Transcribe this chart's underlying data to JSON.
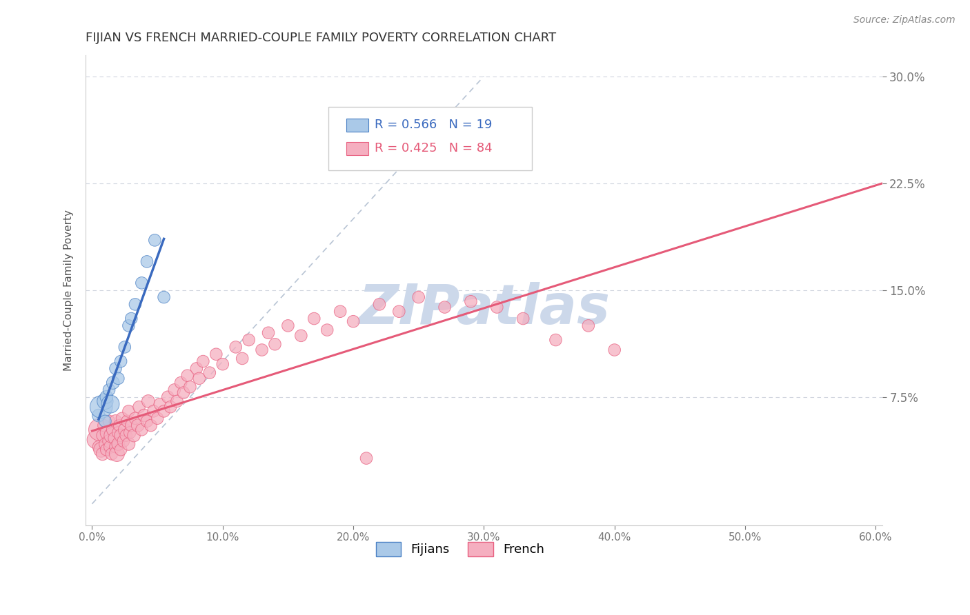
{
  "title": "FIJIAN VS FRENCH MARRIED-COUPLE FAMILY POVERTY CORRELATION CHART",
  "source_text": "Source: ZipAtlas.com",
  "ylabel": "Married-Couple Family Poverty",
  "xlim": [
    -0.005,
    0.605
  ],
  "ylim": [
    -0.015,
    0.315
  ],
  "xticks": [
    0.0,
    0.1,
    0.2,
    0.3,
    0.4,
    0.5,
    0.6
  ],
  "xticklabels": [
    "0.0%",
    "10.0%",
    "20.0%",
    "30.0%",
    "40.0%",
    "50.0%",
    "60.0%"
  ],
  "yticks": [
    0.075,
    0.15,
    0.225,
    0.3
  ],
  "yticklabels": [
    "7.5%",
    "15.0%",
    "22.5%",
    "30.0%"
  ],
  "fijian_fill": "#aac9e8",
  "fijian_edge": "#4a80c4",
  "french_fill": "#f5afc0",
  "french_edge": "#e86080",
  "fijian_line_color": "#3a6abf",
  "french_line_color": "#e55a78",
  "diagonal_color": "#b8c4d4",
  "watermark_color": "#ccd8ea",
  "legend_r_fijian": "R = 0.566",
  "legend_n_fijian": "N = 19",
  "legend_r_french": "R = 0.425",
  "legend_n_french": "N = 84",
  "fijian_x": [
    0.005,
    0.007,
    0.01,
    0.01,
    0.011,
    0.013,
    0.014,
    0.016,
    0.018,
    0.02,
    0.022,
    0.025,
    0.028,
    0.03,
    0.033,
    0.038,
    0.042,
    0.048,
    0.055
  ],
  "fijian_y": [
    0.062,
    0.068,
    0.058,
    0.072,
    0.075,
    0.08,
    0.07,
    0.085,
    0.095,
    0.088,
    0.1,
    0.11,
    0.125,
    0.13,
    0.14,
    0.155,
    0.17,
    0.185,
    0.145
  ],
  "fijian_sizes": [
    180,
    550,
    160,
    280,
    180,
    160,
    350,
    180,
    160,
    160,
    160,
    160,
    160,
    160,
    160,
    160,
    160,
    160,
    160
  ],
  "french_x": [
    0.003,
    0.005,
    0.006,
    0.007,
    0.008,
    0.008,
    0.009,
    0.01,
    0.011,
    0.012,
    0.013,
    0.013,
    0.014,
    0.015,
    0.015,
    0.016,
    0.017,
    0.018,
    0.018,
    0.019,
    0.02,
    0.02,
    0.021,
    0.022,
    0.022,
    0.023,
    0.024,
    0.025,
    0.026,
    0.027,
    0.028,
    0.028,
    0.029,
    0.03,
    0.032,
    0.033,
    0.035,
    0.036,
    0.038,
    0.04,
    0.042,
    0.043,
    0.045,
    0.047,
    0.05,
    0.052,
    0.055,
    0.058,
    0.06,
    0.063,
    0.065,
    0.068,
    0.07,
    0.073,
    0.075,
    0.08,
    0.082,
    0.085,
    0.09,
    0.095,
    0.1,
    0.11,
    0.115,
    0.12,
    0.13,
    0.135,
    0.14,
    0.15,
    0.16,
    0.17,
    0.18,
    0.19,
    0.2,
    0.21,
    0.22,
    0.235,
    0.25,
    0.27,
    0.29,
    0.31,
    0.33,
    0.355,
    0.38,
    0.4
  ],
  "french_y": [
    0.045,
    0.04,
    0.052,
    0.038,
    0.048,
    0.035,
    0.055,
    0.042,
    0.038,
    0.05,
    0.044,
    0.058,
    0.04,
    0.048,
    0.035,
    0.052,
    0.046,
    0.04,
    0.058,
    0.035,
    0.05,
    0.042,
    0.055,
    0.038,
    0.048,
    0.06,
    0.044,
    0.052,
    0.048,
    0.058,
    0.042,
    0.065,
    0.05,
    0.055,
    0.048,
    0.06,
    0.055,
    0.068,
    0.052,
    0.062,
    0.058,
    0.072,
    0.055,
    0.065,
    0.06,
    0.07,
    0.065,
    0.075,
    0.068,
    0.08,
    0.072,
    0.085,
    0.078,
    0.09,
    0.082,
    0.095,
    0.088,
    0.1,
    0.092,
    0.105,
    0.098,
    0.11,
    0.102,
    0.115,
    0.108,
    0.12,
    0.112,
    0.125,
    0.118,
    0.13,
    0.122,
    0.135,
    0.128,
    0.032,
    0.14,
    0.135,
    0.145,
    0.138,
    0.142,
    0.138,
    0.13,
    0.115,
    0.125,
    0.108
  ],
  "french_sizes": [
    350,
    160,
    550,
    250,
    160,
    180,
    160,
    160,
    160,
    250,
    180,
    160,
    180,
    250,
    160,
    180,
    160,
    160,
    180,
    250,
    160,
    180,
    160,
    160,
    180,
    160,
    160,
    180,
    160,
    160,
    180,
    160,
    160,
    160,
    180,
    160,
    180,
    160,
    160,
    180,
    160,
    180,
    160,
    160,
    160,
    160,
    160,
    160,
    160,
    160,
    160,
    160,
    160,
    160,
    160,
    160,
    160,
    160,
    160,
    160,
    160,
    160,
    160,
    160,
    160,
    160,
    160,
    160,
    160,
    160,
    160,
    160,
    160,
    160,
    160,
    160,
    160,
    160,
    160,
    160,
    160,
    160,
    160,
    160
  ]
}
